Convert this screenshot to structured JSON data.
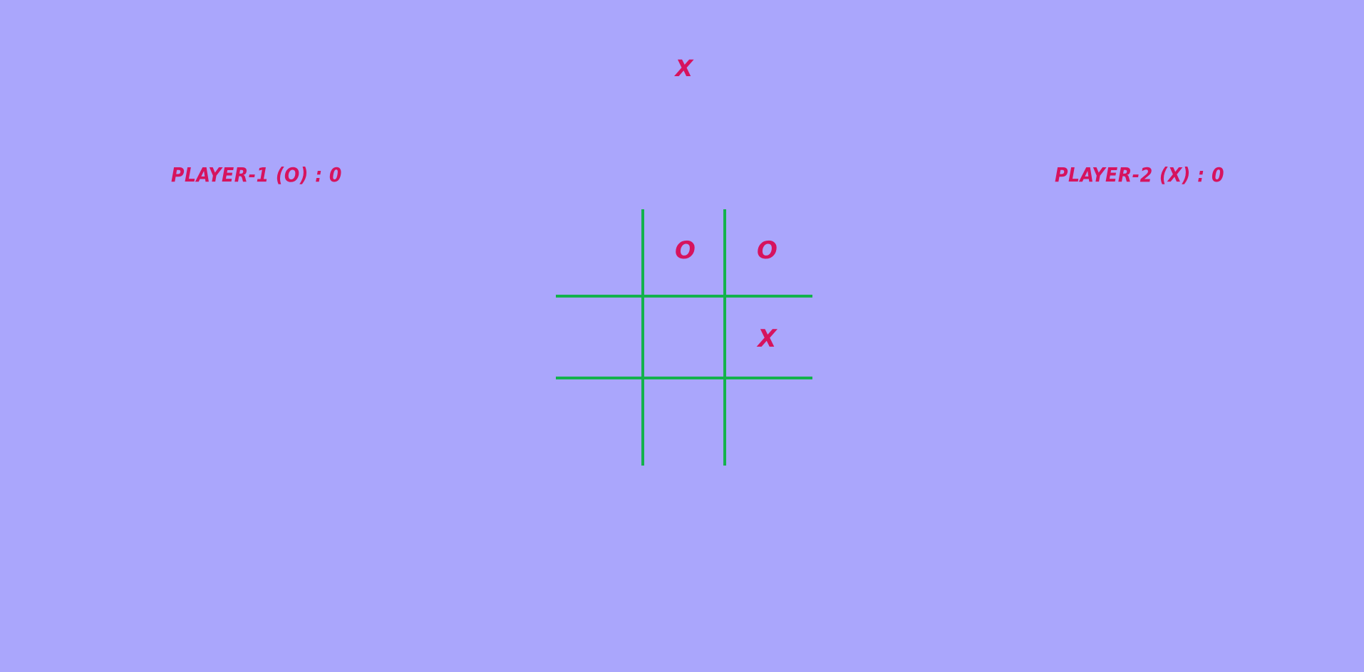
{
  "turn_indicator": "X",
  "scores": {
    "player1": "PLAYER-1 (O) : 0",
    "player2": "PLAYER-2 (X) : 0"
  },
  "board": {
    "cells": [
      "",
      "O",
      "O",
      "",
      "",
      "X",
      "",
      "",
      ""
    ]
  },
  "colors": {
    "background": "#aaa6fc",
    "text": "#d6135e",
    "grid": "#13b24c"
  }
}
